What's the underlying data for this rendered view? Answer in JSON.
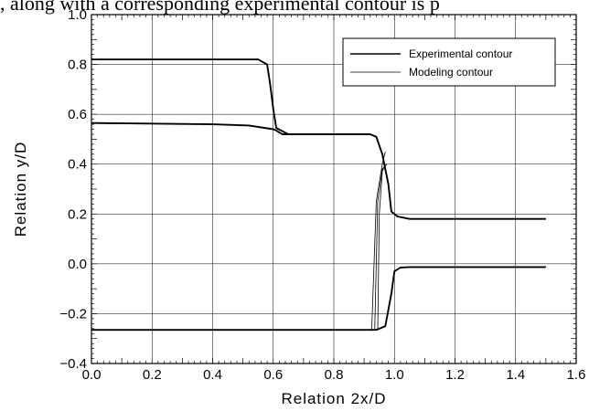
{
  "caption": ", along with a corresponding experimental contour is p",
  "chart_data": {
    "type": "line",
    "xlabel": "Relation  2x/D",
    "ylabel": "Relation  y/D",
    "xlim": [
      0.0,
      1.6
    ],
    "ylim": [
      -0.4,
      1.0
    ],
    "x_ticks": [
      0.0,
      0.2,
      0.4,
      0.6,
      0.8,
      1.0,
      1.2,
      1.4,
      1.6
    ],
    "x_tick_labels": [
      "0.0",
      "0.2",
      "0.4",
      "0.6",
      "0.8",
      "1.0",
      "1.2",
      "1.4",
      "1.6"
    ],
    "y_ticks": [
      -0.4,
      -0.2,
      0.0,
      0.2,
      0.4,
      0.6,
      0.8,
      1.0
    ],
    "y_tick_labels": [
      "−0.4",
      "−0.2",
      "0.0",
      "0.2",
      "0.4",
      "0.6",
      "0.8",
      "1.0"
    ],
    "grid": true,
    "legend_position": "top-right",
    "legend": [
      "Experimental contour",
      "Modeling contour"
    ],
    "series": [
      {
        "name": "Experimental contour",
        "style": "thick",
        "segments": [
          [
            [
              0.0,
              0.82
            ],
            [
              0.55,
              0.82
            ],
            [
              0.58,
              0.8
            ],
            [
              0.59,
              0.72
            ],
            [
              0.6,
              0.62
            ],
            [
              0.61,
              0.545
            ],
            [
              0.65,
              0.52
            ],
            [
              0.92,
              0.52
            ],
            [
              0.94,
              0.51
            ],
            [
              0.96,
              0.44
            ],
            [
              0.98,
              0.32
            ],
            [
              0.99,
              0.21
            ],
            [
              1.01,
              0.19
            ],
            [
              1.05,
              0.18
            ],
            [
              1.5,
              0.18
            ]
          ],
          [
            [
              0.0,
              0.565
            ],
            [
              0.4,
              0.56
            ],
            [
              0.52,
              0.555
            ],
            [
              0.6,
              0.54
            ],
            [
              0.61,
              0.535
            ],
            [
              0.63,
              0.52
            ],
            [
              0.65,
              0.52
            ]
          ],
          [
            [
              0.0,
              -0.265
            ],
            [
              0.94,
              -0.265
            ],
            [
              0.97,
              -0.25
            ],
            [
              0.99,
              -0.12
            ],
            [
              1.0,
              -0.03
            ],
            [
              1.02,
              -0.015
            ],
            [
              1.05,
              -0.013
            ],
            [
              1.5,
              -0.013
            ]
          ]
        ]
      },
      {
        "name": "Modeling contour",
        "style": "thin",
        "segments": [
          [
            [
              0.925,
              -0.265
            ],
            [
              0.94,
              0.25
            ],
            [
              0.96,
              0.4
            ],
            [
              0.97,
              0.45
            ]
          ],
          [
            [
              0.935,
              -0.265
            ],
            [
              0.945,
              0.25
            ],
            [
              0.96,
              0.38
            ],
            [
              0.975,
              0.4
            ]
          ],
          [
            [
              0.945,
              -0.265
            ],
            [
              0.95,
              0.2
            ],
            [
              0.96,
              0.37
            ],
            [
              0.97,
              0.4
            ]
          ]
        ]
      }
    ]
  }
}
